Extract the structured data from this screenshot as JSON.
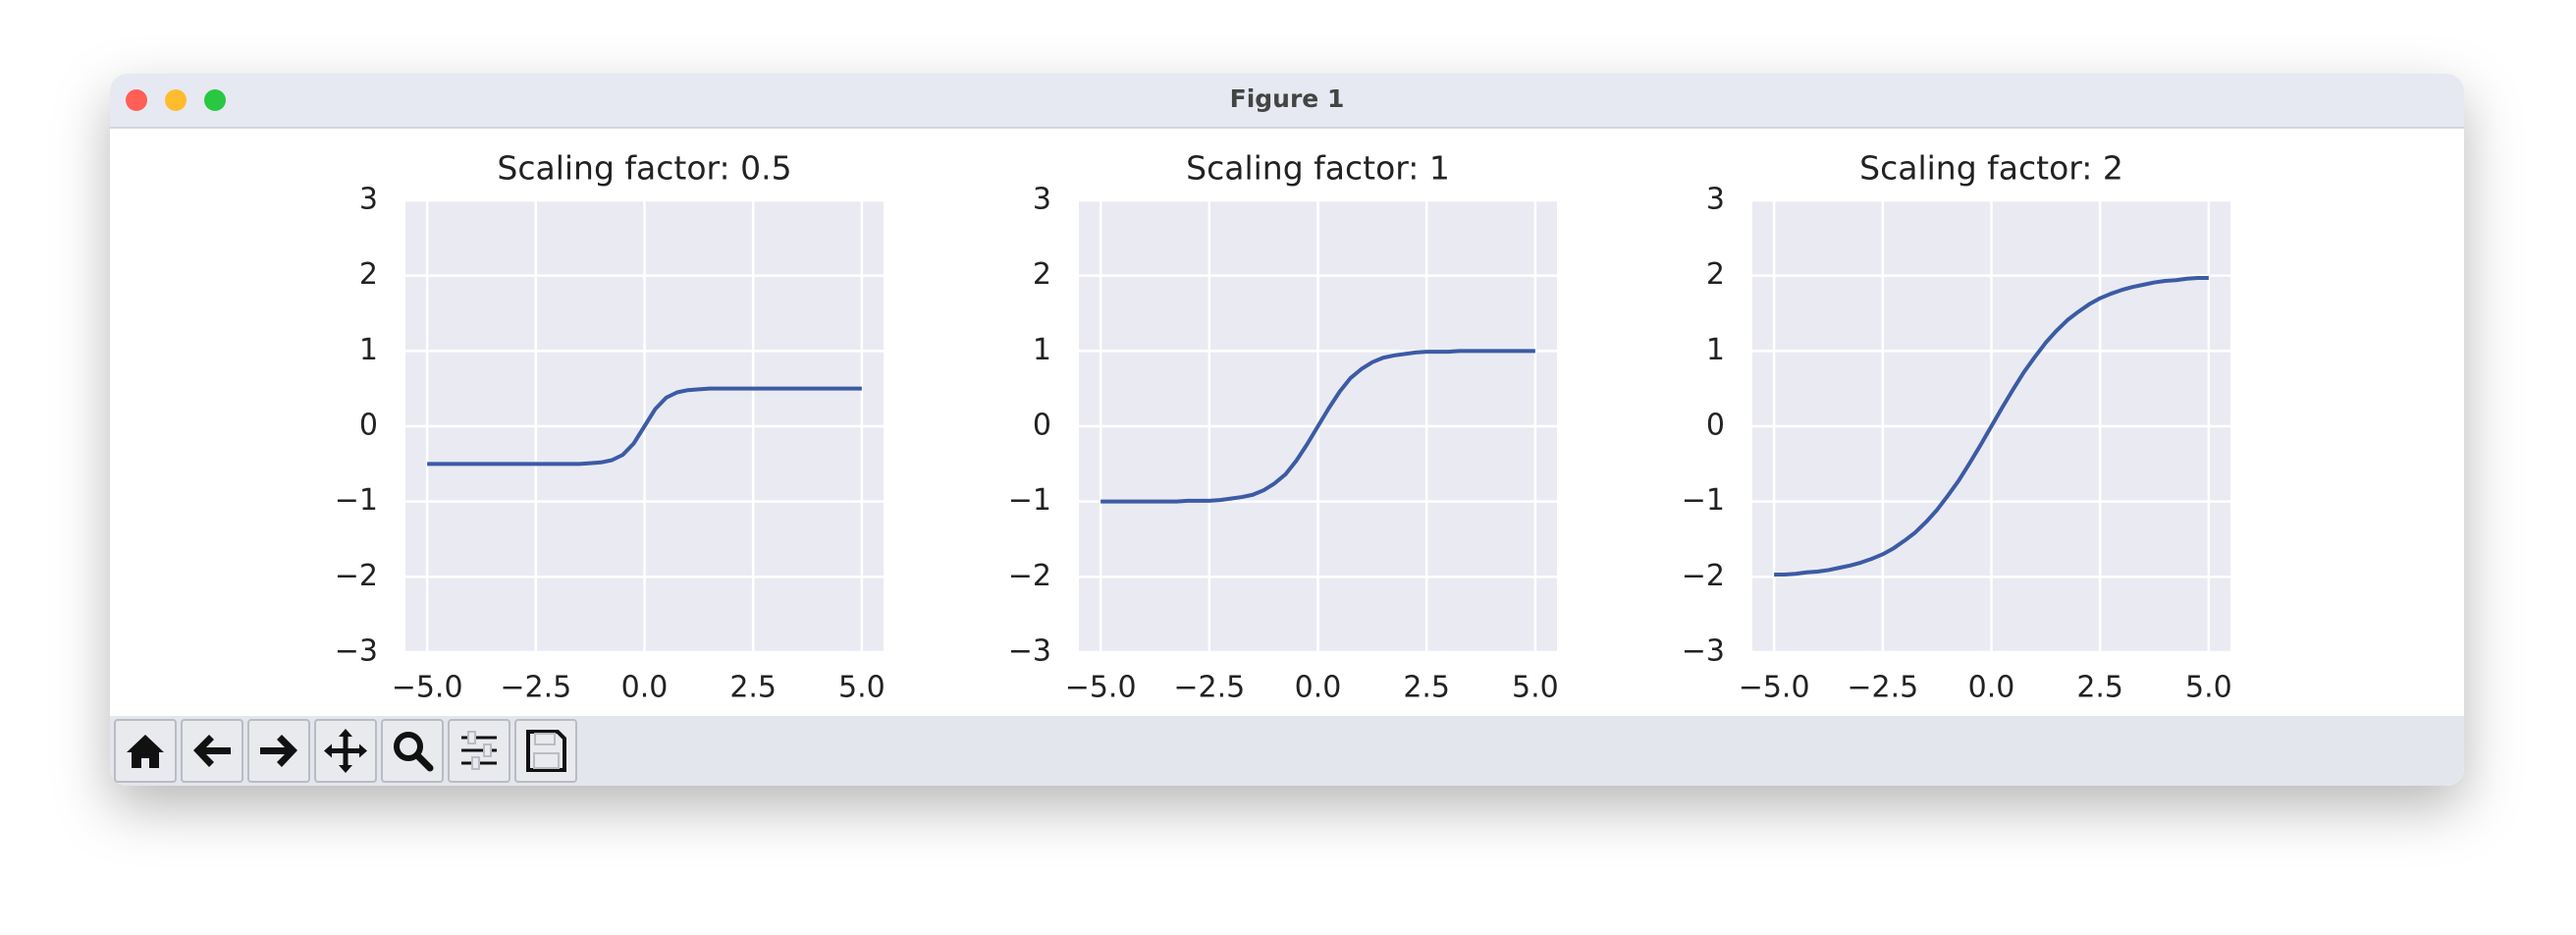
{
  "window": {
    "title": "Figure 1"
  },
  "chart_data": [
    {
      "type": "line",
      "title": "Scaling factor: 0.5",
      "color": "#3b5ba5",
      "grid": true,
      "x": [
        -5,
        -4.75,
        -4.5,
        -4.25,
        -4,
        -3.75,
        -3.5,
        -3.25,
        -3,
        -2.75,
        -2.5,
        -2.25,
        -2,
        -1.75,
        -1.5,
        -1.25,
        -1,
        -0.75,
        -0.5,
        -0.25,
        0,
        0.25,
        0.5,
        0.75,
        1,
        1.25,
        1.5,
        1.75,
        2,
        2.25,
        2.5,
        2.75,
        3,
        3.25,
        3.5,
        3.75,
        4,
        4.25,
        4.5,
        4.75,
        5
      ],
      "values": [
        -0.5,
        -0.5,
        -0.5,
        -0.5,
        -0.5,
        -0.5,
        -0.5,
        -0.5,
        -0.5,
        -0.5,
        -0.5,
        -0.5,
        -0.5,
        -0.5,
        -0.5,
        -0.49,
        -0.48,
        -0.45,
        -0.38,
        -0.23,
        0,
        0.23,
        0.38,
        0.45,
        0.48,
        0.49,
        0.5,
        0.5,
        0.5,
        0.5,
        0.5,
        0.5,
        0.5,
        0.5,
        0.5,
        0.5,
        0.5,
        0.5,
        0.5,
        0.5,
        0.5
      ],
      "xlim": [
        -5.5,
        5.5
      ],
      "ylim": [
        -3,
        3
      ],
      "xticks": [
        {
          "value": -5,
          "label": "−5.0"
        },
        {
          "value": -2.5,
          "label": "−2.5"
        },
        {
          "value": 0,
          "label": "0.0"
        },
        2.5,
        {
          "value": 5,
          "label": "5.0"
        }
      ],
      "yticks": [
        {
          "value": -3,
          "label": "−3"
        },
        {
          "value": -2,
          "label": "−2"
        },
        {
          "value": -1,
          "label": "−1"
        },
        0,
        1,
        2,
        3
      ]
    },
    {
      "type": "line",
      "title": "Scaling factor: 1",
      "color": "#3b5ba5",
      "grid": true,
      "x": [
        -5,
        -4.75,
        -4.5,
        -4.25,
        -4,
        -3.75,
        -3.5,
        -3.25,
        -3,
        -2.75,
        -2.5,
        -2.25,
        -2,
        -1.75,
        -1.5,
        -1.25,
        -1,
        -0.75,
        -0.5,
        -0.25,
        0,
        0.25,
        0.5,
        0.75,
        1,
        1.25,
        1.5,
        1.75,
        2,
        2.25,
        2.5,
        2.75,
        3,
        3.25,
        3.5,
        3.75,
        4,
        4.25,
        4.5,
        4.75,
        5
      ],
      "values": [
        -1,
        -1,
        -1,
        -1,
        -1,
        -1,
        -1,
        -1,
        -0.99,
        -0.99,
        -0.99,
        -0.98,
        -0.96,
        -0.94,
        -0.91,
        -0.85,
        -0.76,
        -0.64,
        -0.46,
        -0.24,
        0,
        0.24,
        0.46,
        0.64,
        0.76,
        0.85,
        0.91,
        0.94,
        0.96,
        0.98,
        0.99,
        0.99,
        0.99,
        1,
        1,
        1,
        1,
        1,
        1,
        1,
        1
      ],
      "xlim": [
        -5.5,
        5.5
      ],
      "ylim": [
        -3,
        3
      ],
      "xticks": [
        {
          "value": -5,
          "label": "−5.0"
        },
        {
          "value": -2.5,
          "label": "−2.5"
        },
        {
          "value": 0,
          "label": "0.0"
        },
        2.5,
        {
          "value": 5,
          "label": "5.0"
        }
      ],
      "yticks": [
        {
          "value": -3,
          "label": "−3"
        },
        {
          "value": -2,
          "label": "−2"
        },
        {
          "value": -1,
          "label": "−1"
        },
        0,
        1,
        2,
        3
      ]
    },
    {
      "type": "line",
      "title": "Scaling factor: 2",
      "color": "#3b5ba5",
      "grid": true,
      "x": [
        -5,
        -4.75,
        -4.5,
        -4.25,
        -4,
        -3.75,
        -3.5,
        -3.25,
        -3,
        -2.75,
        -2.5,
        -2.25,
        -2,
        -1.75,
        -1.5,
        -1.25,
        -1,
        -0.75,
        -0.5,
        -0.25,
        0,
        0.25,
        0.5,
        0.75,
        1,
        1.25,
        1.5,
        1.75,
        2,
        2.25,
        2.5,
        2.75,
        3,
        3.25,
        3.5,
        3.75,
        4,
        4.25,
        4.5,
        4.75,
        5
      ],
      "values": [
        -1.97,
        -1.97,
        -1.96,
        -1.94,
        -1.93,
        -1.91,
        -1.88,
        -1.85,
        -1.81,
        -1.76,
        -1.7,
        -1.62,
        -1.52,
        -1.41,
        -1.27,
        -1.11,
        -0.92,
        -0.72,
        -0.49,
        -0.25,
        0,
        0.25,
        0.49,
        0.72,
        0.92,
        1.11,
        1.27,
        1.41,
        1.52,
        1.62,
        1.7,
        1.76,
        1.81,
        1.85,
        1.88,
        1.91,
        1.93,
        1.94,
        1.96,
        1.97,
        1.97
      ],
      "xlim": [
        -5.5,
        5.5
      ],
      "ylim": [
        -3,
        3
      ],
      "xticks": [
        {
          "value": -5,
          "label": "−5.0"
        },
        {
          "value": -2.5,
          "label": "−2.5"
        },
        {
          "value": 0,
          "label": "0.0"
        },
        2.5,
        {
          "value": 5,
          "label": "5.0"
        }
      ],
      "yticks": [
        {
          "value": -3,
          "label": "−3"
        },
        {
          "value": -2,
          "label": "−2"
        },
        {
          "value": -1,
          "label": "−1"
        },
        0,
        1,
        2,
        3
      ]
    }
  ]
}
